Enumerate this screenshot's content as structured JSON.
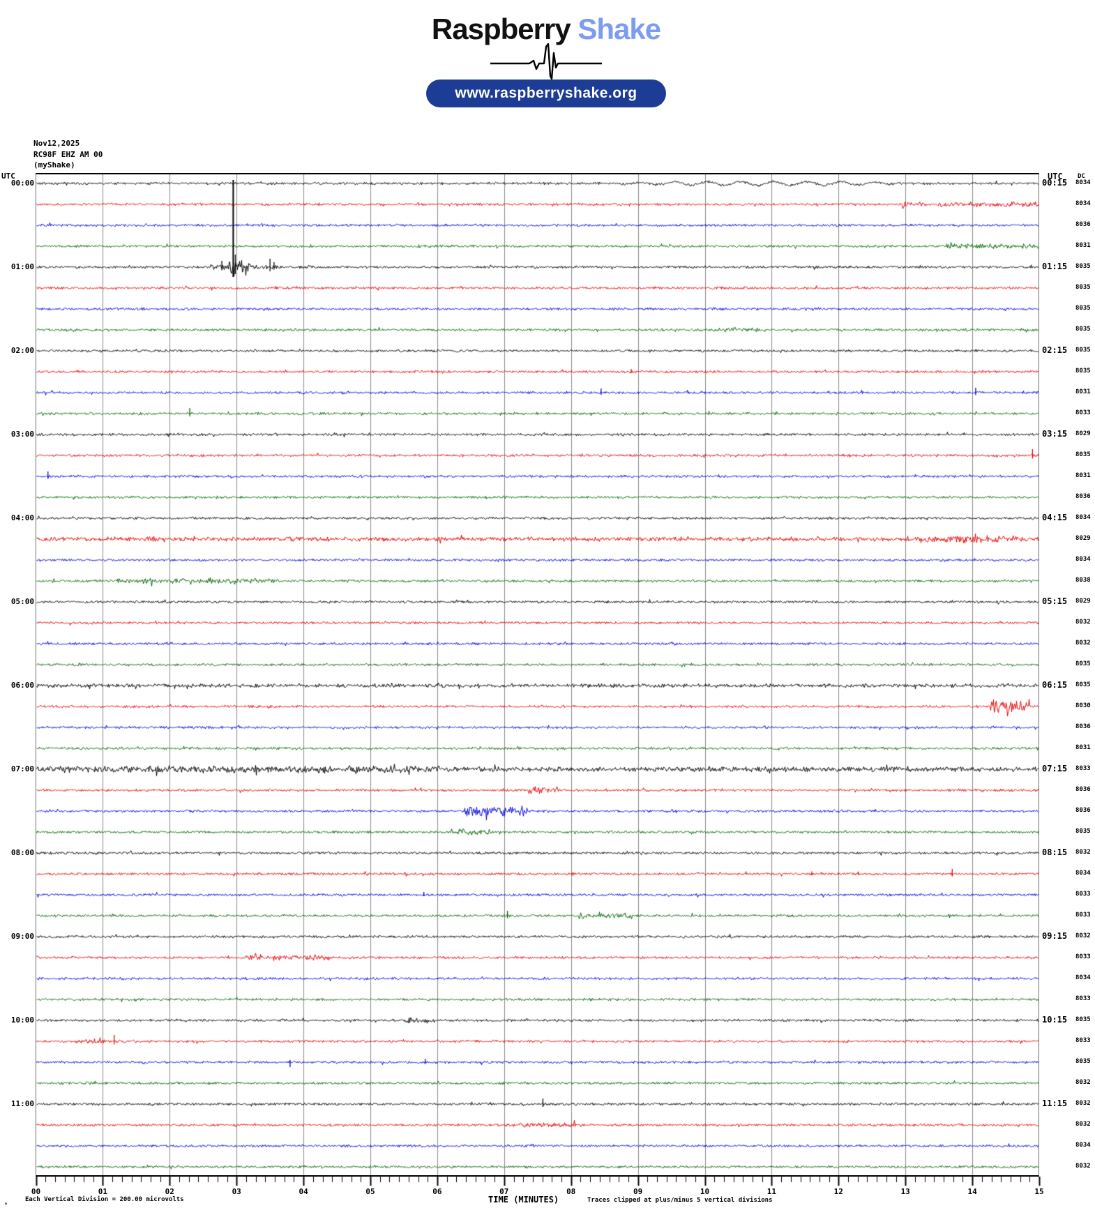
{
  "header": {
    "brand_primary": "Raspberry",
    "brand_secondary": "Shake",
    "url_label": "www.raspberryshake.org"
  },
  "station": {
    "date": "Nov12,2025",
    "channel": "RC98F EHZ AM 00",
    "network": "(myShake)"
  },
  "labels": {
    "utc_left": "UTC",
    "utc_right": "UTC",
    "dc_header": "DC",
    "x_title": "TIME (MINUTES)",
    "footer_mark": "ₘ",
    "footer_left": "Each Vertical Division =  200.00 microvolts",
    "clip_note": "Traces clipped at plus/minus 5 vertical divisions"
  },
  "colors": {
    "black": "#000000",
    "red": "#e60000",
    "blue": "#0000dd",
    "green": "#006600",
    "grid": "#8a8a8a",
    "pill_bg": "#1d3c96",
    "brand_secondary_color": "#7d9bef"
  },
  "chart_data": {
    "type": "line",
    "subtype": "helicorder-seismogram",
    "title": "RC98F EHZ AM 00 helicorder, Nov12,2025",
    "xlabel": "TIME (MINUTES)",
    "x_range_minutes": [
      0,
      15
    ],
    "x_tick_labels": [
      "00",
      "01",
      "02",
      "03",
      "04",
      "05",
      "06",
      "07",
      "08",
      "09",
      "10",
      "11",
      "12",
      "13",
      "14",
      "15"
    ],
    "minutes_per_row": 15,
    "vertical_division_microvolts": 200.0,
    "clip_divisions": 5,
    "color_cycle": [
      "black",
      "red",
      "blue",
      "green"
    ],
    "rows": [
      {
        "left_label": "00:00",
        "right_label": "00:15",
        "color": "black",
        "dc": 8034
      },
      {
        "left_label": null,
        "right_label": null,
        "color": "red",
        "dc": 8034
      },
      {
        "left_label": null,
        "right_label": null,
        "color": "blue",
        "dc": 8036
      },
      {
        "left_label": null,
        "right_label": null,
        "color": "green",
        "dc": 8031
      },
      {
        "left_label": "01:00",
        "right_label": "01:15",
        "color": "black",
        "dc": 8035
      },
      {
        "left_label": null,
        "right_label": null,
        "color": "red",
        "dc": 8035
      },
      {
        "left_label": null,
        "right_label": null,
        "color": "blue",
        "dc": 8035
      },
      {
        "left_label": null,
        "right_label": null,
        "color": "green",
        "dc": 8035
      },
      {
        "left_label": "02:00",
        "right_label": "02:15",
        "color": "black",
        "dc": 8035
      },
      {
        "left_label": null,
        "right_label": null,
        "color": "red",
        "dc": 8035
      },
      {
        "left_label": null,
        "right_label": null,
        "color": "blue",
        "dc": 8031
      },
      {
        "left_label": null,
        "right_label": null,
        "color": "green",
        "dc": 8033
      },
      {
        "left_label": "03:00",
        "right_label": "03:15",
        "color": "black",
        "dc": 8029
      },
      {
        "left_label": null,
        "right_label": null,
        "color": "red",
        "dc": 8035
      },
      {
        "left_label": null,
        "right_label": null,
        "color": "blue",
        "dc": 8031
      },
      {
        "left_label": null,
        "right_label": null,
        "color": "green",
        "dc": 8036
      },
      {
        "left_label": "04:00",
        "right_label": "04:15",
        "color": "black",
        "dc": 8034
      },
      {
        "left_label": null,
        "right_label": null,
        "color": "red",
        "dc": 8029
      },
      {
        "left_label": null,
        "right_label": null,
        "color": "blue",
        "dc": 8034
      },
      {
        "left_label": null,
        "right_label": null,
        "color": "green",
        "dc": 8038
      },
      {
        "left_label": "05:00",
        "right_label": "05:15",
        "color": "black",
        "dc": 8029
      },
      {
        "left_label": null,
        "right_label": null,
        "color": "red",
        "dc": 8032
      },
      {
        "left_label": null,
        "right_label": null,
        "color": "blue",
        "dc": 8032
      },
      {
        "left_label": null,
        "right_label": null,
        "color": "green",
        "dc": 8035
      },
      {
        "left_label": "06:00",
        "right_label": "06:15",
        "color": "black",
        "dc": 8035
      },
      {
        "left_label": null,
        "right_label": null,
        "color": "red",
        "dc": 8030
      },
      {
        "left_label": null,
        "right_label": null,
        "color": "blue",
        "dc": 8036
      },
      {
        "left_label": null,
        "right_label": null,
        "color": "green",
        "dc": 8031
      },
      {
        "left_label": "07:00",
        "right_label": "07:15",
        "color": "black",
        "dc": 8033
      },
      {
        "left_label": null,
        "right_label": null,
        "color": "red",
        "dc": 8036
      },
      {
        "left_label": null,
        "right_label": null,
        "color": "blue",
        "dc": 8036
      },
      {
        "left_label": null,
        "right_label": null,
        "color": "green",
        "dc": 8035
      },
      {
        "left_label": "08:00",
        "right_label": "08:15",
        "color": "black",
        "dc": 8032
      },
      {
        "left_label": null,
        "right_label": null,
        "color": "red",
        "dc": 8034
      },
      {
        "left_label": null,
        "right_label": null,
        "color": "blue",
        "dc": 8033
      },
      {
        "left_label": null,
        "right_label": null,
        "color": "green",
        "dc": 8033
      },
      {
        "left_label": "09:00",
        "right_label": "09:15",
        "color": "black",
        "dc": 8032
      },
      {
        "left_label": null,
        "right_label": null,
        "color": "red",
        "dc": 8033
      },
      {
        "left_label": null,
        "right_label": null,
        "color": "blue",
        "dc": 8034
      },
      {
        "left_label": null,
        "right_label": null,
        "color": "green",
        "dc": 8033
      },
      {
        "left_label": "10:00",
        "right_label": "10:15",
        "color": "black",
        "dc": 8035
      },
      {
        "left_label": null,
        "right_label": null,
        "color": "red",
        "dc": 8033
      },
      {
        "left_label": null,
        "right_label": null,
        "color": "blue",
        "dc": 8035
      },
      {
        "left_label": null,
        "right_label": null,
        "color": "green",
        "dc": 8032
      },
      {
        "left_label": "11:00",
        "right_label": "11:15",
        "color": "black",
        "dc": 8032
      },
      {
        "left_label": null,
        "right_label": null,
        "color": "red",
        "dc": 8032
      },
      {
        "left_label": null,
        "right_label": null,
        "color": "blue",
        "dc": 8034
      },
      {
        "left_label": null,
        "right_label": null,
        "color": "green",
        "dc": 8032
      }
    ],
    "events": [
      {
        "row": 0,
        "type": "wobble",
        "t1": 8.4,
        "t2": 13.3,
        "amp": 3.0,
        "period": 0.5
      },
      {
        "row": 1,
        "type": "burst",
        "t1": 12.9,
        "t2": 15.0,
        "amp": 1.6
      },
      {
        "row": 3,
        "type": "burst",
        "t1": 13.6,
        "t2": 15.0,
        "amp": 1.6
      },
      {
        "row": 4,
        "type": "bigspike",
        "t": 2.95,
        "up": 125,
        "down": 14
      },
      {
        "row": 4,
        "type": "burst",
        "t1": 2.86,
        "t2": 3.18,
        "amp": 8.0
      },
      {
        "row": 4,
        "type": "burst",
        "t1": 2.6,
        "t2": 3.6,
        "amp": 2.0
      },
      {
        "row": 4,
        "type": "spike",
        "t": 2.78,
        "amp": 9
      },
      {
        "row": 4,
        "type": "spike",
        "t": 3.5,
        "amp": 12
      },
      {
        "row": 4,
        "type": "spike",
        "t": 3.56,
        "amp": 7
      },
      {
        "row": 7,
        "type": "burst",
        "t1": 10.2,
        "t2": 10.9,
        "amp": 1.5
      },
      {
        "row": 9,
        "type": "spike",
        "t": 8.9,
        "amp": 4
      },
      {
        "row": 10,
        "type": "spike",
        "t": 8.45,
        "amp": 6
      },
      {
        "row": 10,
        "type": "spike",
        "t": 14.05,
        "amp": 7
      },
      {
        "row": 11,
        "type": "spike",
        "t": 2.3,
        "amp": 8
      },
      {
        "row": 13,
        "type": "spike",
        "t": 14.9,
        "amp": 9
      },
      {
        "row": 14,
        "type": "spike",
        "t": 0.18,
        "amp": 7
      },
      {
        "row": 17,
        "type": "burst",
        "t1": 0.0,
        "t2": 15.0,
        "amp": 1.2
      },
      {
        "row": 17,
        "type": "burst",
        "t1": 13.3,
        "t2": 14.7,
        "amp": 2.2
      },
      {
        "row": 19,
        "type": "burst",
        "t1": 1.2,
        "t2": 3.6,
        "amp": 1.6
      },
      {
        "row": 24,
        "type": "burst",
        "t1": 0.0,
        "t2": 15.0,
        "amp": 0.8
      },
      {
        "row": 25,
        "type": "burst",
        "t1": 14.25,
        "t2": 14.85,
        "amp": 8.0
      },
      {
        "row": 28,
        "type": "burst",
        "t1": 0.0,
        "t2": 15.0,
        "amp": 1.6
      },
      {
        "row": 28,
        "type": "burst",
        "t1": 0.0,
        "t2": 6.1,
        "amp": 1.4
      },
      {
        "row": 29,
        "type": "burst",
        "t1": 7.3,
        "t2": 7.8,
        "amp": 3.0
      },
      {
        "row": 30,
        "type": "burst",
        "t1": 6.4,
        "t2": 7.35,
        "amp": 5.0
      },
      {
        "row": 31,
        "type": "burst",
        "t1": 6.2,
        "t2": 6.8,
        "amp": 2.5
      },
      {
        "row": 33,
        "type": "spike",
        "t": 11.6,
        "amp": 3.5
      },
      {
        "row": 33,
        "type": "spike",
        "t": 12.3,
        "amp": 3.5
      },
      {
        "row": 33,
        "type": "spike",
        "t": 13.7,
        "amp": 7
      },
      {
        "row": 34,
        "type": "spike",
        "t": 5.8,
        "amp": 4
      },
      {
        "row": 35,
        "type": "spike",
        "t": 7.05,
        "amp": 7
      },
      {
        "row": 35,
        "type": "burst",
        "t1": 8.1,
        "t2": 8.9,
        "amp": 2.0
      },
      {
        "row": 37,
        "type": "burst",
        "t1": 3.1,
        "t2": 4.4,
        "amp": 2.0
      },
      {
        "row": 40,
        "type": "burst",
        "t1": 5.5,
        "t2": 5.95,
        "amp": 2.0
      },
      {
        "row": 41,
        "type": "spike",
        "t": 1.17,
        "amp": 9
      },
      {
        "row": 41,
        "type": "burst",
        "t1": 0.6,
        "t2": 1.05,
        "amp": 1.5
      },
      {
        "row": 42,
        "type": "spike",
        "t": 3.8,
        "amp": -7
      },
      {
        "row": 42,
        "type": "spike",
        "t": 5.82,
        "amp": 5
      },
      {
        "row": 44,
        "type": "spike",
        "t": 7.58,
        "amp": 8
      },
      {
        "row": 45,
        "type": "burst",
        "t1": 7.2,
        "t2": 8.2,
        "amp": 1.3
      }
    ]
  }
}
